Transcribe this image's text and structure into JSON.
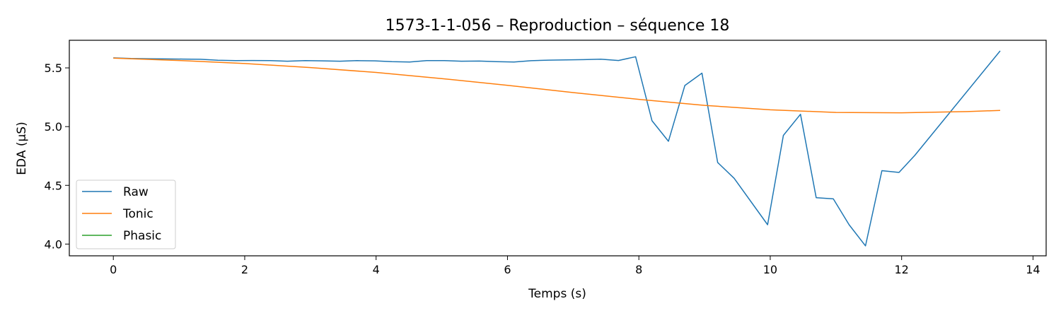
{
  "chart_data": {
    "type": "line",
    "title": "1573-1-1-056 – Reproduction – séquence 18",
    "xlabel": "Temps (s)",
    "ylabel": "EDA (µS)",
    "xlim": [
      -0.67,
      14.2
    ],
    "ylim": [
      3.9,
      5.735
    ],
    "xticks": [
      0,
      2,
      4,
      6,
      8,
      10,
      12,
      14
    ],
    "yticks": [
      4.0,
      4.5,
      5.0,
      5.5
    ],
    "xtick_labels": [
      "0",
      "2",
      "4",
      "6",
      "8",
      "10",
      "12",
      "14"
    ],
    "ytick_labels": [
      "4.0",
      "4.5",
      "5.0",
      "5.5"
    ],
    "grid": false,
    "legend_position": "lower-left",
    "series": [
      {
        "name": "Raw",
        "color": "#1f77b4",
        "x": [
          0,
          0.27,
          0.53,
          0.8,
          1.06,
          1.33,
          1.59,
          1.86,
          2.12,
          2.39,
          2.65,
          2.92,
          3.18,
          3.45,
          3.71,
          3.98,
          4.24,
          4.51,
          4.77,
          5.04,
          5.3,
          5.57,
          5.83,
          6.1,
          6.36,
          6.63,
          6.89,
          7.16,
          7.42,
          7.69,
          7.95,
          8.2,
          8.45,
          8.7,
          8.96,
          9.2,
          9.45,
          9.96,
          10.2,
          10.46,
          10.7,
          10.96,
          11.2,
          11.45,
          11.7,
          11.96,
          12.2,
          13.5
        ],
        "y": [
          5.585,
          5.58,
          5.578,
          5.576,
          5.575,
          5.573,
          5.565,
          5.562,
          5.563,
          5.562,
          5.557,
          5.562,
          5.56,
          5.557,
          5.562,
          5.56,
          5.553,
          5.55,
          5.562,
          5.562,
          5.557,
          5.558,
          5.553,
          5.55,
          5.561,
          5.566,
          5.568,
          5.57,
          5.574,
          5.563,
          5.595,
          5.05,
          4.875,
          5.35,
          5.455,
          4.695,
          4.56,
          4.165,
          4.925,
          5.105,
          4.395,
          4.385,
          4.165,
          3.985,
          4.625,
          4.61,
          4.755,
          5.645
        ]
      },
      {
        "name": "Tonic",
        "color": "#ff7f0e",
        "x": [
          0,
          1,
          2,
          3,
          4,
          5,
          6,
          7,
          8,
          9,
          10,
          11,
          12,
          13,
          13.5
        ],
        "y": [
          5.583,
          5.563,
          5.537,
          5.503,
          5.461,
          5.409,
          5.352,
          5.29,
          5.232,
          5.181,
          5.143,
          5.121,
          5.118,
          5.128,
          5.138
        ]
      },
      {
        "name": "Phasic",
        "color": "#2ca02c",
        "x": [],
        "y": []
      }
    ]
  }
}
